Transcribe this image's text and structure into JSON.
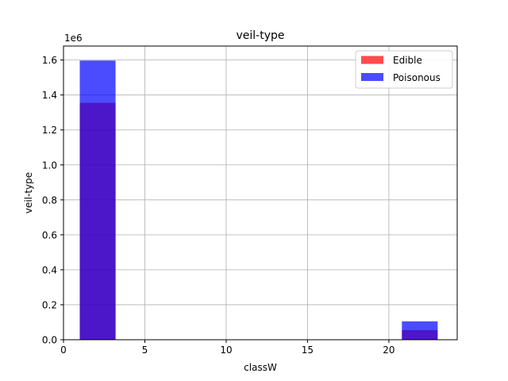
{
  "chart_data": {
    "type": "bar",
    "title": "veil-type",
    "xlabel": "classW",
    "ylabel": "veil-type",
    "y_multiplier_label": "1e6",
    "xlim": [
      0,
      24.2
    ],
    "ylim": [
      0,
      1.68
    ],
    "xticks": [
      0,
      5,
      10,
      15,
      20
    ],
    "xtick_labels": [
      "0",
      "5",
      "10",
      "15",
      "20"
    ],
    "yticks": [
      0,
      0.2,
      0.4,
      0.6,
      0.8,
      1.0,
      1.2,
      1.4,
      1.6
    ],
    "ytick_labels": [
      "0.0",
      "0.2",
      "0.4",
      "0.6",
      "0.8",
      "1.0",
      "1.2",
      "1.4",
      "1.6"
    ],
    "grid": true,
    "legend_position": "top-right",
    "series": [
      {
        "name": "Edible",
        "color": "#ff0000",
        "bars": [
          {
            "x0": 1.0,
            "x1": 3.2,
            "value": 1.355
          },
          {
            "x0": 20.8,
            "x1": 23.0,
            "value": 0.055
          }
        ]
      },
      {
        "name": "Poisonous",
        "color": "#0000ff",
        "bars": [
          {
            "x0": 1.0,
            "x1": 3.2,
            "value": 1.597
          },
          {
            "x0": 20.8,
            "x1": 23.0,
            "value": 0.105
          }
        ]
      }
    ]
  }
}
